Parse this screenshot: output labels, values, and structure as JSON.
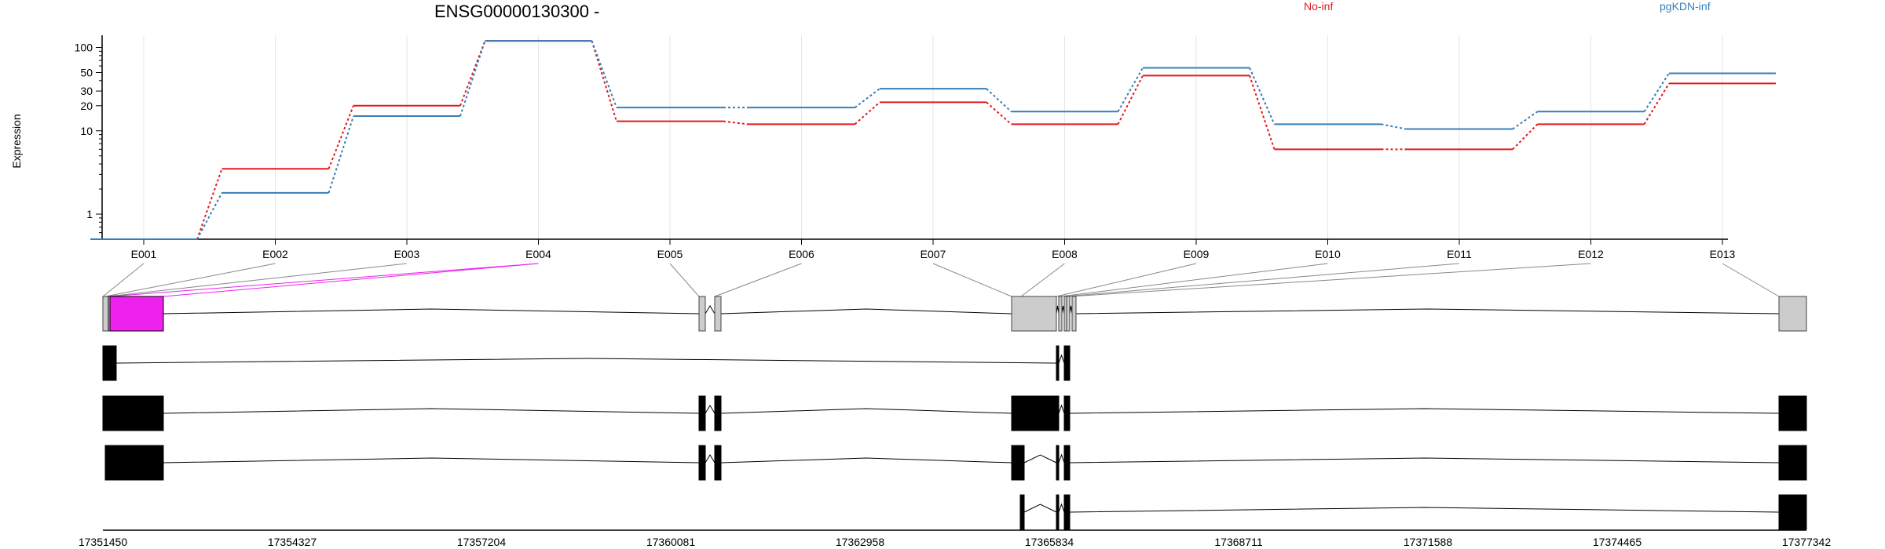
{
  "chart_data": {
    "type": "line",
    "title": "ENSG00000130300 -",
    "ylabel": "Expression",
    "y_scale": "log",
    "y_ticks": [
      1,
      10,
      20,
      30,
      50,
      100
    ],
    "ylim": [
      0.5,
      140
    ],
    "categories": [
      "E001",
      "E002",
      "E003",
      "E004",
      "E005",
      "E006",
      "E007",
      "E008",
      "E009",
      "E010",
      "E011",
      "E012",
      "E013"
    ],
    "series": [
      {
        "name": "No-inf",
        "color": "#e41a1c",
        "values": [
          0.5,
          3.5,
          20,
          120,
          13,
          12,
          22,
          12,
          46,
          6,
          6,
          12,
          37
        ]
      },
      {
        "name": "pgKDN-inf",
        "color": "#377eb8",
        "values": [
          0.5,
          1.8,
          15,
          120,
          19,
          19,
          32,
          17,
          57,
          12,
          10.5,
          17,
          49
        ]
      }
    ],
    "grid": true,
    "legend_position": "top-right",
    "genomic_axis": {
      "ticks": [
        "17351450",
        "17354327",
        "17357204",
        "17360081",
        "17362958",
        "17365834",
        "17368711",
        "17371588",
        "17374465",
        "17377342"
      ]
    },
    "highlight_color": "#ee22ee"
  }
}
